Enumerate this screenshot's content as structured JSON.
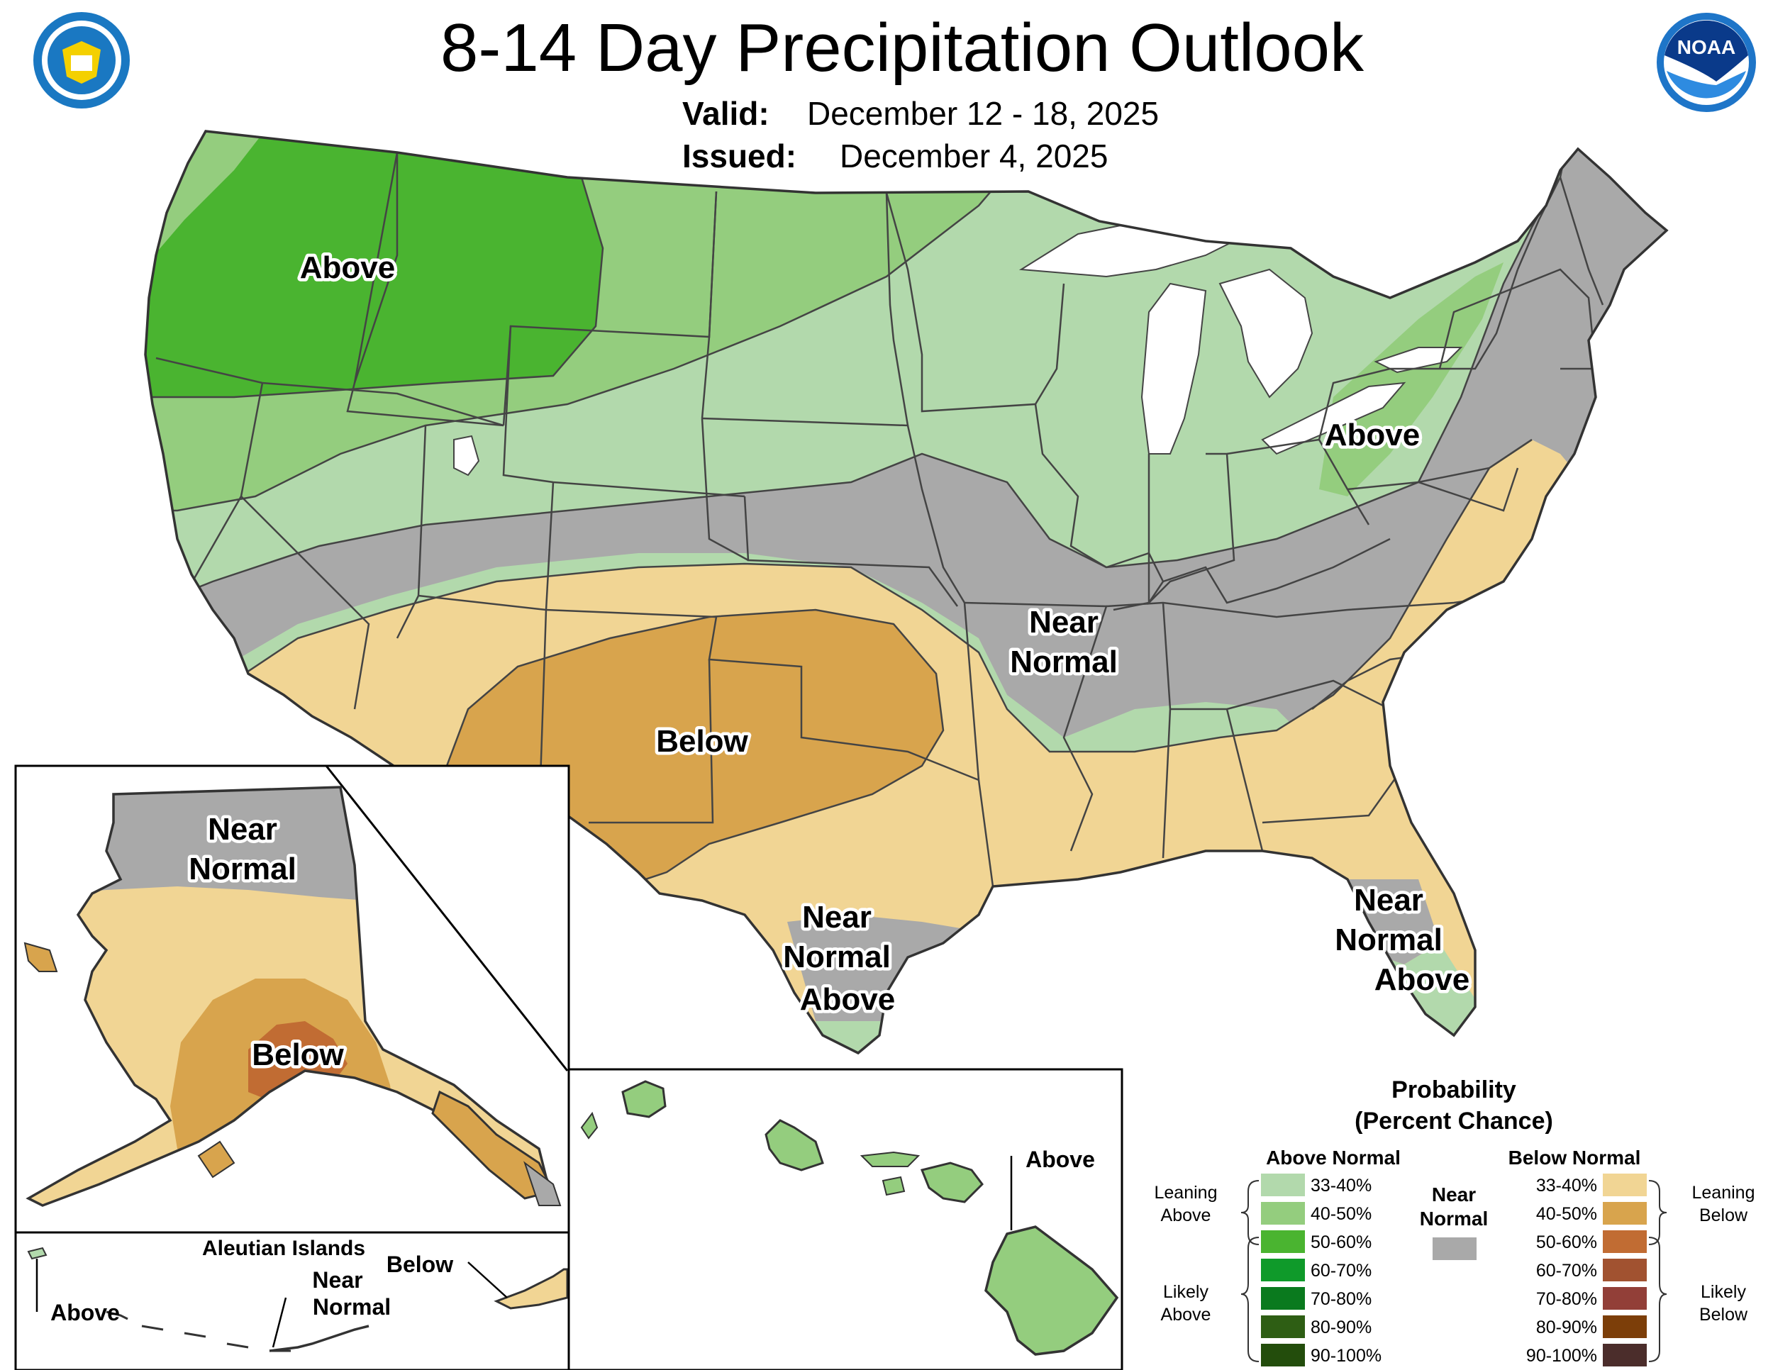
{
  "header": {
    "title": "8-14 Day Precipitation Outlook",
    "valid_label": "Valid:",
    "valid_value": "December 12 - 18, 2025",
    "issued_label": "Issued:",
    "issued_value": "December 4, 2025",
    "left_logo_icon": "department-of-commerce-seal-icon",
    "right_logo_icon": "noaa-logo-icon",
    "right_logo_text": "NOAA"
  },
  "colors": {
    "above_33_40": "#b2d9ac",
    "above_40_50": "#94cd7e",
    "above_50_60": "#4ab430",
    "above_60_70": "#0f9a2a",
    "above_70_80": "#0a7a1e",
    "above_80_90": "#2e5e14",
    "above_90_100": "#234d0c",
    "near_normal": "#a9a9a9",
    "below_33_40": "#f1d594",
    "below_40_50": "#d8a44d",
    "below_50_60": "#c16c33",
    "below_60_70": "#a15230",
    "below_70_80": "#923f38",
    "below_80_90": "#7c3e09",
    "below_90_100": "#4b2d2b",
    "water": "#ffffff",
    "outline": "#444444"
  },
  "map_labels": {
    "conus_above_nw": "Above",
    "conus_above_ne": "Above",
    "conus_near_normal_1": "Near",
    "conus_near_normal_2": "Normal",
    "conus_below": "Below",
    "texas_near_1": "Near",
    "texas_near_2": "Normal",
    "texas_above": "Above",
    "florida_near_1": "Near",
    "florida_near_2": "Normal",
    "florida_above": "Above",
    "alaska_near_1": "Near",
    "alaska_near_2": "Normal",
    "alaska_below": "Below",
    "aleutian_title": "Aleutian Islands",
    "aleutian_above": "Above",
    "aleutian_near_1": "Near",
    "aleutian_near_2": "Normal",
    "aleutian_below": "Below",
    "hawaii_above": "Above"
  },
  "legend": {
    "title_1": "Probability",
    "title_2": "(Percent Chance)",
    "above_header": "Above Normal",
    "below_header": "Below Normal",
    "near_1": "Near",
    "near_2": "Normal",
    "leaning_above_1": "Leaning",
    "leaning_above_2": "Above",
    "likely_above_1": "Likely",
    "likely_above_2": "Above",
    "leaning_below_1": "Leaning",
    "leaning_below_2": "Below",
    "likely_below_1": "Likely",
    "likely_below_2": "Below",
    "above_rows": [
      "33-40%",
      "40-50%",
      "50-60%",
      "60-70%",
      "70-80%",
      "80-90%",
      "90-100%"
    ],
    "below_rows": [
      "33-40%",
      "40-50%",
      "50-60%",
      "60-70%",
      "70-80%",
      "80-90%",
      "90-100%"
    ]
  }
}
